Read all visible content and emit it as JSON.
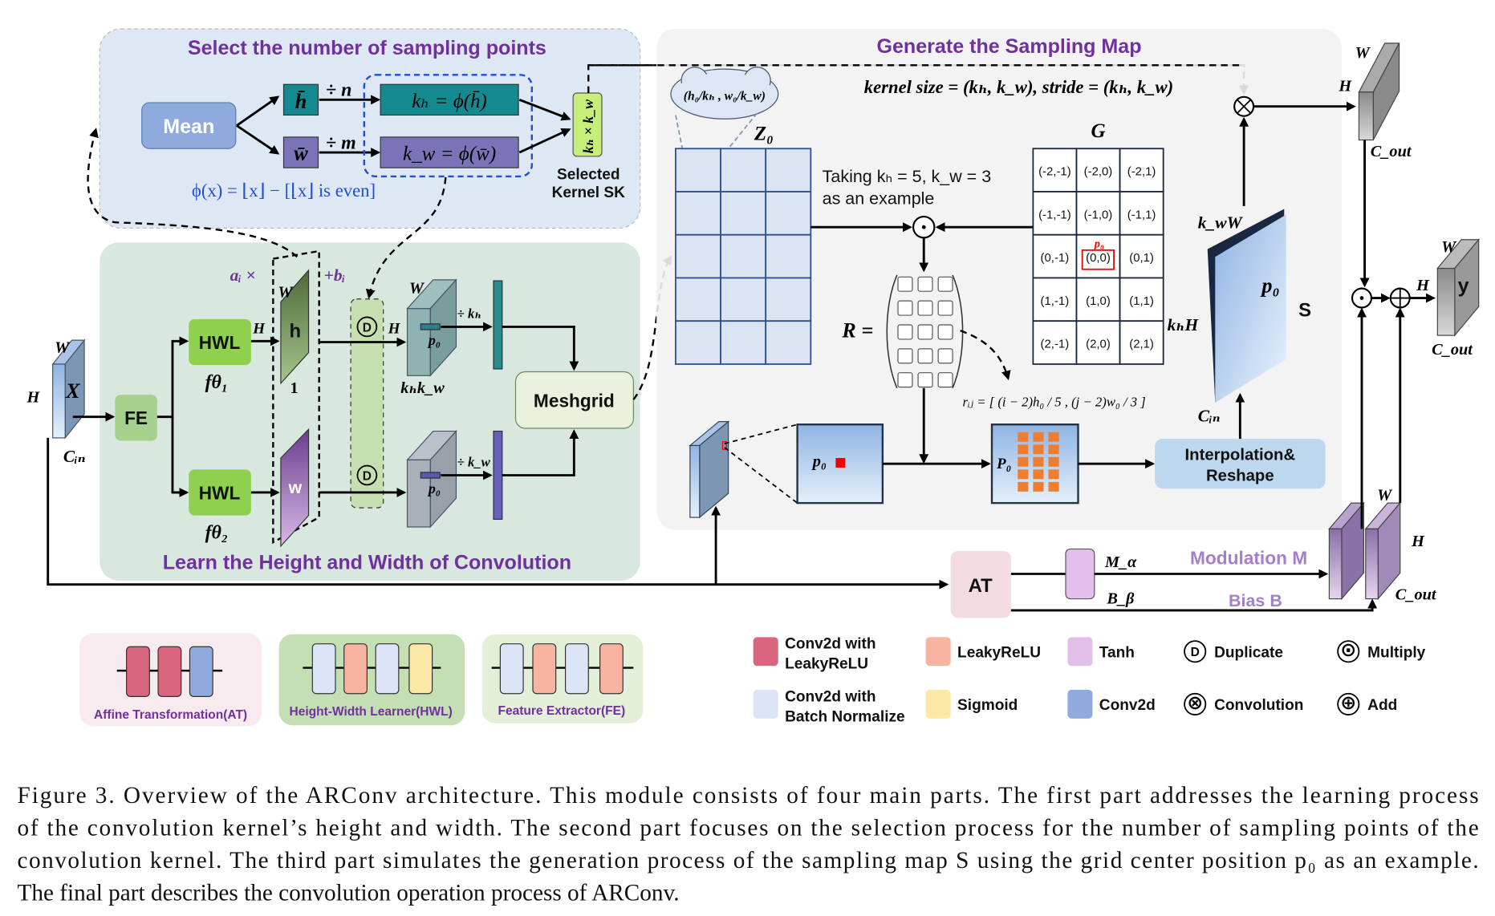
{
  "panels": {
    "select": {
      "title": "Select the number of sampling points",
      "mean": "Mean",
      "h_bar": "h̄",
      "w_bar": "w̄",
      "div_n": "÷ n",
      "div_m": "÷ m",
      "kh_eq": "kₕ = ϕ(h̄)",
      "kw_eq": "k_w = ϕ(w̄)",
      "sk": "kₕ × k_w",
      "selected": "Selected",
      "kernel_sk": "Kernel SK",
      "phi": "ϕ(x) = ⌊x⌋ − [⌊x⌋ is even]"
    },
    "learn": {
      "title": "Learn the Height and Width of Convolution",
      "x": "X",
      "w": "W",
      "h": "H",
      "cin": "Cᵢₙ",
      "fe": "FE",
      "hwl": "HWL",
      "f1": "fθ₁",
      "f2": "fθ₂",
      "ai": "aᵢ ×",
      "bi": "+bᵢ",
      "h_map": "h",
      "w_map": "w",
      "one": "1",
      "d": "D",
      "p0": "p₀",
      "khkw": "kₕk_w",
      "div_kh": "÷ kₕ",
      "div_kw": "÷ k_w",
      "meshgrid": "Meshgrid"
    },
    "sampling": {
      "title": "Generate the Sampling Map",
      "cloud": "(h₀/kₕ , w₀/k_w)",
      "kernel_text": "kernel size = (kₕ, k_w), stride = (kₕ, k_w)",
      "z0": "Z₀",
      "taking1": "Taking kₕ = 5, k_w = 3",
      "taking2": "as an example",
      "g": "G",
      "g_cells": [
        "(-2,-1)",
        "(-2,0)",
        "(-2,1)",
        "(-1,-1)",
        "(-1,0)",
        "(-1,1)",
        "(0,-1)",
        "(0,0)",
        "(0,1)",
        "(1,-1)",
        "(1,0)",
        "(1,1)",
        "(2,-1)",
        "(2,0)",
        "(2,1)"
      ],
      "g_p0": "p₀",
      "r_eq": "R =",
      "rij": "rᵢⱼ = [ (i − 2)h₀ / 5 , (j − 2)w₀ / 3 ]",
      "p0": "p₀",
      "P0": "P₀",
      "interp1": "Interpolation&",
      "interp2": "Reshape",
      "kwW": "k_wW",
      "khH": "kₕH",
      "cin": "Cᵢₙ",
      "s": "S",
      "s_p0": "p₀"
    },
    "output": {
      "w": "W",
      "h": "H",
      "cout": "C_out",
      "y": "y",
      "at": "AT",
      "ma": "M_α",
      "bb": "B_β",
      "modulation": "Modulation  M",
      "bias": "Bias B"
    }
  },
  "legend": {
    "groups": [
      {
        "label": "Affine Transformation(AT)"
      },
      {
        "label": "Height-Width Learner(HWL)"
      },
      {
        "label": "Feature Extractor(FE)"
      }
    ],
    "items": [
      {
        "label1": "Conv2d with",
        "label2": "LeakyReLU",
        "color": "#d9667e"
      },
      {
        "label1": "LeakyReLU",
        "label2": "",
        "color": "#f9b3a1"
      },
      {
        "label1": "Tanh",
        "label2": "",
        "color": "#e2bfe9"
      },
      {
        "label1": "Duplicate",
        "label2": "",
        "symbol": "D"
      },
      {
        "label1": "Multiply",
        "label2": "",
        "symbol": "⊙"
      },
      {
        "label1": "Conv2d with",
        "label2": "Batch Normalize",
        "color": "#dce4f8"
      },
      {
        "label1": "Sigmoid",
        "label2": "",
        "color": "#fbe8a6"
      },
      {
        "label1": "Conv2d",
        "label2": "",
        "color": "#8faadc"
      },
      {
        "label1": "Convolution",
        "label2": "",
        "symbol": "⊗"
      },
      {
        "label1": "Add",
        "label2": "",
        "symbol": "⊕"
      }
    ]
  },
  "caption": {
    "lines": [
      "Figure 3.  Overview of the ARConv architecture.  This module consists of four main parts.  The first part addresses the learning process",
      "of the convolution kernel’s height and width.  The second part focuses on the selection process for the number of sampling points of the",
      "convolution kernel.  The third part simulates the generation process of the sampling map S using the grid center position p₀ as an example.",
      "The final part describes the convolution operation process of ARConv."
    ]
  },
  "colors": {
    "title": "#7030a0",
    "teal": "#138a8f",
    "purple": "#7b73b8",
    "hwl": "#8fd14f",
    "fe": "#a8d08d",
    "orange": "#ed7d31"
  }
}
